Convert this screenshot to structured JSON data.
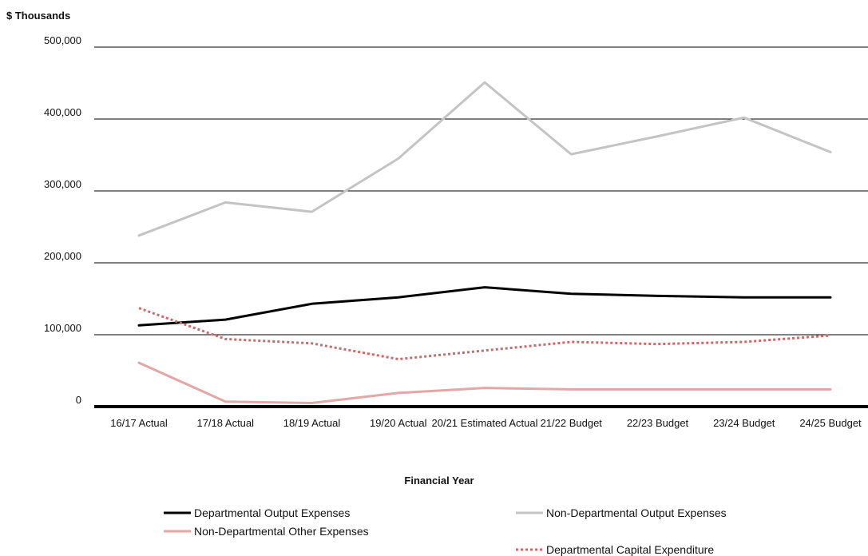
{
  "chart_data": {
    "type": "line",
    "title": "",
    "unit_label": "$ Thousands",
    "xlabel": "Financial Year",
    "ylabel": "",
    "ylim": [
      0,
      500000
    ],
    "yticks": [
      0,
      100000,
      200000,
      300000,
      400000,
      500000
    ],
    "ytick_labels": [
      "0",
      "100,000",
      "200,000",
      "300,000",
      "400,000",
      "500,000"
    ],
    "grid": true,
    "legend_position": "bottom",
    "categories": [
      "16/17 Actual",
      "17/18 Actual",
      "18/19 Actual",
      "19/20 Actual",
      "20/21 Estimated Actual",
      "21/22 Budget",
      "22/23 Budget",
      "23/24 Budget",
      "24/25 Budget"
    ],
    "series": [
      {
        "name": "Departmental Output Expenses",
        "color": "#000000",
        "style": "solid",
        "values": [
          113000,
          121000,
          143000,
          152000,
          166000,
          157000,
          154000,
          152000,
          152000
        ]
      },
      {
        "name": "Non-Departmental Output Expenses",
        "color": "#c4c4c4",
        "style": "solid",
        "values": [
          238000,
          284000,
          271000,
          345000,
          451000,
          351000,
          376000,
          402000,
          354000
        ]
      },
      {
        "name": "Non-Departmental Other Expenses",
        "color": "#e3a7a5",
        "style": "solid",
        "values": [
          61000,
          7000,
          5000,
          19000,
          26000,
          24000,
          24000,
          24000,
          24000
        ]
      },
      {
        "name": "Departmental Capital Expenditure",
        "color": "#cc6a6a",
        "style": "dotted",
        "values": [
          137000,
          94000,
          88000,
          66000,
          78000,
          90000,
          87000,
          90000,
          99000
        ]
      }
    ]
  }
}
